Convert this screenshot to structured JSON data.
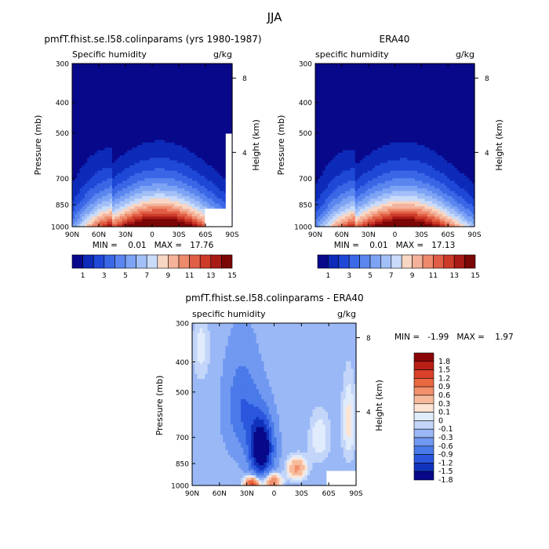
{
  "page_title": "JJA",
  "colors": {
    "shallow": [
      "#08088a",
      "#0d2ab8",
      "#1f48d6",
      "#3a67e6",
      "#5b86ef",
      "#7da3f4",
      "#a2bff7",
      "#c9dbf9",
      "#f8d6c4",
      "#f4b29a",
      "#ee8a6c",
      "#e05e45",
      "#cc3a28",
      "#a81a16",
      "#7a0606"
    ],
    "diff": [
      "#08088a",
      "#1133bb",
      "#2a57dd",
      "#4a7ae9",
      "#7199f1",
      "#9ab8f6",
      "#c3d6f9",
      "#e0ecfc",
      "#fde4d3",
      "#f7bb9c",
      "#f2916d",
      "#e9683f",
      "#d9412a",
      "#b81f14",
      "#8a0606"
    ],
    "missing": "#ffffff"
  },
  "chart_data": [
    {
      "id": "model",
      "type": "heatmap",
      "title": "pmfT.fhist.se.l58.colinparams (yrs 1980-1987)",
      "subtitle_left": "Specific humidity",
      "subtitle_right": "g/kg",
      "ylabel": "Pressure (mb)",
      "y2label": "Height (km)",
      "x_ticks": [
        "90N",
        "60N",
        "30N",
        "0",
        "30S",
        "60S",
        "90S"
      ],
      "y_ticks": [
        "300",
        "400",
        "500",
        "700",
        "850",
        "1000"
      ],
      "y2_ticks": [
        "8",
        "4"
      ],
      "minmax": "MIN =    0.01   MAX =   17.76",
      "colorbar_labels": [
        "1",
        "3",
        "5",
        "7",
        "9",
        "11",
        "13",
        "15"
      ],
      "peak_value": 17.76,
      "peak_lat": -8,
      "ylim": [
        1000,
        300
      ],
      "xlim": [
        90,
        -90
      ]
    },
    {
      "id": "obs",
      "type": "heatmap",
      "title": "ERA40",
      "subtitle_left": "specific humidity",
      "subtitle_right": "g/kg",
      "ylabel": "Pressure (mb)",
      "y2label": "Height (km)",
      "x_ticks": [
        "90N",
        "60N",
        "30N",
        "0",
        "30S",
        "60S",
        "90S"
      ],
      "y_ticks": [
        "300",
        "400",
        "500",
        "700",
        "850",
        "1000"
      ],
      "y2_ticks": [
        "8",
        "4"
      ],
      "minmax": "MIN =    0.01   MAX =   17.13",
      "colorbar_labels": [
        "1",
        "3",
        "5",
        "7",
        "9",
        "11",
        "13",
        "15"
      ],
      "peak_value": 17.13,
      "peak_lat": -10,
      "ylim": [
        1000,
        300
      ],
      "xlim": [
        90,
        -90
      ]
    },
    {
      "id": "diff",
      "type": "heatmap",
      "title": "pmfT.fhist.se.l58.colinparams - ERA40",
      "subtitle_left": "specific humidity",
      "subtitle_right": "g/kg",
      "ylabel": "Pressure (mb)",
      "y2label": "Height (km)",
      "x_ticks": [
        "90N",
        "60N",
        "30N",
        "0",
        "30S",
        "60S",
        "90S"
      ],
      "y_ticks": [
        "300",
        "400",
        "500",
        "700",
        "850",
        "1000"
      ],
      "y2_ticks": [
        "8",
        "4"
      ],
      "minmax": "MIN =   -1.99   MAX =    1.97",
      "colorbar_labels": [
        "1.8",
        "1.5",
        "1.2",
        "0.9",
        "0.6",
        "0.3",
        "0.1",
        "0",
        "-0.1",
        "-0.3",
        "-0.6",
        "-0.9",
        "-1.2",
        "-1.5",
        "-1.8"
      ],
      "ylim": [
        1000,
        300
      ],
      "xlim": [
        90,
        -90
      ]
    }
  ]
}
